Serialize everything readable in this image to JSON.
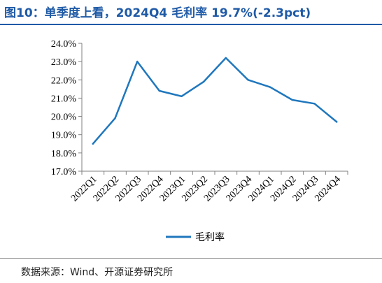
{
  "figure_title": "图10：单季度上看，2024Q4 毛利率 19.7%(-2.3pct)",
  "source_note": "数据来源：Wind、开源证券研究所",
  "colors": {
    "title": "#1f5aa6",
    "series": "#1f77bd",
    "axis": "#808080"
  },
  "chart_data": {
    "type": "line",
    "categories": [
      "2022Q1",
      "2022Q2",
      "2022Q3",
      "2022Q4",
      "2023Q1",
      "2023Q2",
      "2023Q3",
      "2023Q4",
      "2024Q1",
      "2024Q2",
      "2024Q3",
      "2024Q4"
    ],
    "series": [
      {
        "name": "毛利率",
        "values": [
          18.5,
          19.9,
          23.0,
          21.4,
          21.1,
          21.9,
          23.2,
          22.0,
          21.6,
          20.9,
          20.7,
          19.7
        ]
      }
    ],
    "ylim": [
      17.0,
      24.0
    ],
    "yticks": [
      17.0,
      18.0,
      19.0,
      20.0,
      21.0,
      22.0,
      23.0,
      24.0
    ],
    "ytick_labels": [
      "17.0%",
      "18.0%",
      "19.0%",
      "20.0%",
      "21.0%",
      "22.0%",
      "23.0%",
      "24.0%"
    ],
    "grid": false,
    "legend_position": "bottom-center"
  }
}
